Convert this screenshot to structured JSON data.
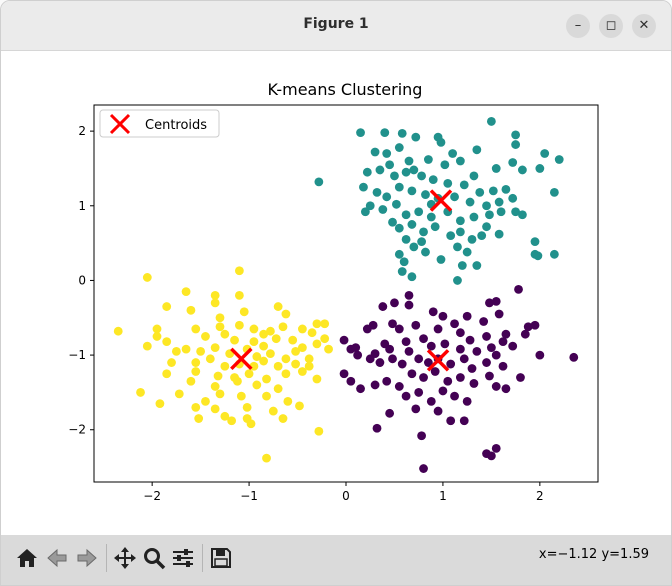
{
  "window": {
    "title": "Figure 1",
    "controls": {
      "minimize": "–",
      "maximize": "◻",
      "close": "✕"
    }
  },
  "toolbar": {
    "buttons": [
      "home-icon",
      "back-icon",
      "forward-icon",
      "pan-icon",
      "zoom-icon",
      "configure-icon",
      "save-icon"
    ],
    "coords": "x=−1.12 y=1.59"
  },
  "colors": {
    "cluster_0": "#440154",
    "cluster_1": "#21918c",
    "cluster_2": "#fde725",
    "centroid": "#ff0000"
  },
  "chart_data": {
    "type": "scatter",
    "title": "K-means Clustering",
    "xlabel": "",
    "ylabel": "",
    "xlim": [
      -2.6,
      2.6
    ],
    "ylim": [
      -2.7,
      2.35
    ],
    "xticks": [
      -2,
      -1,
      0,
      1,
      2
    ],
    "yticks": [
      -2,
      -1,
      0,
      1,
      2
    ],
    "grid": false,
    "legend": {
      "placement": "top-left",
      "entries": [
        "Centroids"
      ]
    },
    "series": [
      {
        "cluster": 0,
        "color": "#440154",
        "points": [
          [
            0.38,
            -0.35
          ],
          [
            0.48,
            -0.58
          ],
          [
            0.65,
            -0.33
          ],
          [
            0.65,
            -0.2
          ],
          [
            0.9,
            -0.42
          ],
          [
            1.0,
            -0.48
          ],
          [
            1.12,
            -0.58
          ],
          [
            1.25,
            -0.48
          ],
          [
            1.42,
            -0.55
          ],
          [
            1.48,
            -0.3
          ],
          [
            1.55,
            -0.28
          ],
          [
            1.58,
            -0.45
          ],
          [
            1.78,
            -0.12
          ],
          [
            1.88,
            -0.62
          ],
          [
            1.65,
            -0.72
          ],
          [
            1.45,
            -0.75
          ],
          [
            1.18,
            -0.7
          ],
          [
            0.95,
            -0.65
          ],
          [
            0.72,
            -0.6
          ],
          [
            0.55,
            -0.65
          ],
          [
            0.28,
            -0.6
          ],
          [
            0.22,
            -0.65
          ],
          [
            0.4,
            -0.85
          ],
          [
            0.3,
            -0.98
          ],
          [
            0.45,
            -0.92
          ],
          [
            0.62,
            -0.82
          ],
          [
            0.8,
            -0.78
          ],
          [
            0.88,
            -0.88
          ],
          [
            1.02,
            -0.85
          ],
          [
            1.18,
            -0.92
          ],
          [
            1.28,
            -0.8
          ],
          [
            1.35,
            -0.95
          ],
          [
            1.5,
            -0.9
          ],
          [
            1.62,
            -0.82
          ],
          [
            1.72,
            -0.88
          ],
          [
            1.85,
            -0.72
          ],
          [
            1.95,
            -0.6
          ],
          [
            -0.02,
            -0.8
          ],
          [
            0.05,
            -0.92
          ],
          [
            0.12,
            -1.0
          ],
          [
            0.25,
            -1.05
          ],
          [
            0.35,
            -1.1
          ],
          [
            0.48,
            -1.05
          ],
          [
            0.58,
            -1.12
          ],
          [
            0.65,
            -0.95
          ],
          [
            0.75,
            -1.05
          ],
          [
            0.85,
            -1.1
          ],
          [
            0.95,
            -1.05
          ],
          [
            1.08,
            -1.12
          ],
          [
            1.22,
            -1.05
          ],
          [
            1.3,
            -1.18
          ],
          [
            1.45,
            -1.1
          ],
          [
            1.55,
            -1.0
          ],
          [
            1.62,
            -1.15
          ],
          [
            1.48,
            -1.28
          ],
          [
            1.32,
            -1.38
          ],
          [
            1.18,
            -1.3
          ],
          [
            1.05,
            -1.35
          ],
          [
            0.92,
            -1.22
          ],
          [
            0.8,
            -1.3
          ],
          [
            0.68,
            -1.25
          ],
          [
            0.55,
            -1.42
          ],
          [
            0.42,
            -1.35
          ],
          [
            0.3,
            -1.4
          ],
          [
            0.15,
            -1.45
          ],
          [
            0.05,
            -1.35
          ],
          [
            -0.02,
            -1.25
          ],
          [
            0.62,
            -1.55
          ],
          [
            0.75,
            -1.5
          ],
          [
            0.88,
            -1.62
          ],
          [
            1.0,
            -1.48
          ],
          [
            1.12,
            -1.55
          ],
          [
            1.25,
            -1.62
          ],
          [
            1.55,
            -1.42
          ],
          [
            1.65,
            -1.45
          ],
          [
            0.72,
            -1.72
          ],
          [
            0.95,
            -1.75
          ],
          [
            1.08,
            -1.88
          ],
          [
            1.22,
            -1.88
          ],
          [
            0.45,
            -1.78
          ],
          [
            0.32,
            -1.98
          ],
          [
            0.78,
            -2.08
          ],
          [
            1.45,
            -2.32
          ],
          [
            1.5,
            -2.35
          ],
          [
            1.55,
            -2.25
          ],
          [
            0.8,
            -2.52
          ],
          [
            2.0,
            -1.0
          ],
          [
            2.35,
            -1.03
          ],
          [
            1.8,
            -1.3
          ],
          [
            0.1,
            -0.9
          ],
          [
            0.5,
            -0.3
          ]
        ]
      },
      {
        "cluster": 1,
        "color": "#21918c",
        "points": [
          [
            0.15,
            1.98
          ],
          [
            0.4,
            1.98
          ],
          [
            0.58,
            1.97
          ],
          [
            0.72,
            1.92
          ],
          [
            0.95,
            1.92
          ],
          [
            0.98,
            1.85
          ],
          [
            1.5,
            2.13
          ],
          [
            1.75,
            1.95
          ],
          [
            1.35,
            1.75
          ],
          [
            1.1,
            1.7
          ],
          [
            0.85,
            1.62
          ],
          [
            0.65,
            1.6
          ],
          [
            0.55,
            1.78
          ],
          [
            0.42,
            1.7
          ],
          [
            0.3,
            1.72
          ],
          [
            1.02,
            1.55
          ],
          [
            1.18,
            1.6
          ],
          [
            1.32,
            1.4
          ],
          [
            1.55,
            1.5
          ],
          [
            1.72,
            1.58
          ],
          [
            1.75,
            1.82
          ],
          [
            2.05,
            1.7
          ],
          [
            2.2,
            1.62
          ],
          [
            2.0,
            1.5
          ],
          [
            1.82,
            1.48
          ],
          [
            0.35,
            1.48
          ],
          [
            0.22,
            1.45
          ],
          [
            0.45,
            1.55
          ],
          [
            0.62,
            1.45
          ],
          [
            0.78,
            1.4
          ],
          [
            0.9,
            1.35
          ],
          [
            1.05,
            1.3
          ],
          [
            1.22,
            1.28
          ],
          [
            1.38,
            1.18
          ],
          [
            1.52,
            1.2
          ],
          [
            1.65,
            1.22
          ],
          [
            0.18,
            1.25
          ],
          [
            0.32,
            1.18
          ],
          [
            0.42,
            1.12
          ],
          [
            0.55,
            1.25
          ],
          [
            0.68,
            1.2
          ],
          [
            0.82,
            1.15
          ],
          [
            0.95,
            1.1
          ],
          [
            1.12,
            1.12
          ],
          [
            1.28,
            1.05
          ],
          [
            1.45,
            1.0
          ],
          [
            1.58,
            1.05
          ],
          [
            1.72,
            1.1
          ],
          [
            1.6,
            0.92
          ],
          [
            1.75,
            0.92
          ],
          [
            0.25,
            1.0
          ],
          [
            0.38,
            0.95
          ],
          [
            0.52,
            1.02
          ],
          [
            0.62,
            0.88
          ],
          [
            0.75,
            0.92
          ],
          [
            0.88,
            0.85
          ],
          [
            1.05,
            0.92
          ],
          [
            1.18,
            0.8
          ],
          [
            1.32,
            0.85
          ],
          [
            1.48,
            0.88
          ],
          [
            0.48,
            0.78
          ],
          [
            0.55,
            0.7
          ],
          [
            0.68,
            0.75
          ],
          [
            0.8,
            0.65
          ],
          [
            0.92,
            0.72
          ],
          [
            1.08,
            0.6
          ],
          [
            1.18,
            0.65
          ],
          [
            1.3,
            0.55
          ],
          [
            1.58,
            0.62
          ],
          [
            1.45,
            0.72
          ],
          [
            0.62,
            0.55
          ],
          [
            0.7,
            0.45
          ],
          [
            0.82,
            0.38
          ],
          [
            1.15,
            0.45
          ],
          [
            1.25,
            0.38
          ],
          [
            0.6,
            0.25
          ],
          [
            0.58,
            0.12
          ],
          [
            1.2,
            0.2
          ],
          [
            1.15,
            0.0
          ],
          [
            1.35,
            0.2
          ],
          [
            -0.28,
            1.32
          ],
          [
            0.5,
            1.4
          ],
          [
            0.78,
            0.52
          ],
          [
            0.68,
            0.05
          ],
          [
            0.2,
            0.92
          ],
          [
            1.95,
            0.52
          ],
          [
            2.15,
            0.35
          ],
          [
            2.15,
            1.18
          ],
          [
            1.95,
            0.35
          ],
          [
            0.88,
            1.02
          ],
          [
            1.4,
            0.6
          ],
          [
            0.55,
            0.35
          ],
          [
            0.98,
            0.28
          ],
          [
            1.98,
            0.33
          ],
          [
            0.7,
            1.48
          ],
          [
            1.82,
            0.88
          ]
        ]
      },
      {
        "cluster": 2,
        "color": "#fde725",
        "points": [
          [
            -2.05,
            0.04
          ],
          [
            -1.1,
            0.13
          ],
          [
            -1.65,
            -0.15
          ],
          [
            -1.35,
            -0.2
          ],
          [
            -1.1,
            -0.2
          ],
          [
            -1.35,
            -0.3
          ],
          [
            -1.6,
            -0.4
          ],
          [
            -1.85,
            -0.35
          ],
          [
            -1.3,
            -0.5
          ],
          [
            -1.05,
            -0.42
          ],
          [
            -0.7,
            -0.35
          ],
          [
            -0.62,
            -0.45
          ],
          [
            -0.3,
            -0.58
          ],
          [
            -0.22,
            -0.58
          ],
          [
            -2.35,
            -0.68
          ],
          [
            -1.95,
            -0.65
          ],
          [
            -1.55,
            -0.65
          ],
          [
            -1.3,
            -0.62
          ],
          [
            -1.1,
            -0.6
          ],
          [
            -0.95,
            -0.65
          ],
          [
            -0.85,
            -0.72
          ],
          [
            -0.78,
            -0.68
          ],
          [
            -0.65,
            -0.62
          ],
          [
            -0.45,
            -0.65
          ],
          [
            -0.35,
            -0.7
          ],
          [
            -0.22,
            -0.78
          ],
          [
            -1.95,
            -0.75
          ],
          [
            -1.85,
            -0.82
          ],
          [
            -1.75,
            -0.95
          ],
          [
            -1.45,
            -0.75
          ],
          [
            -1.25,
            -0.72
          ],
          [
            -1.15,
            -0.8
          ],
          [
            -0.95,
            -0.82
          ],
          [
            -0.85,
            -0.88
          ],
          [
            -0.72,
            -0.78
          ],
          [
            -0.55,
            -0.8
          ],
          [
            -0.45,
            -0.9
          ],
          [
            -0.3,
            -0.85
          ],
          [
            -2.05,
            -0.88
          ],
          [
            -1.65,
            -0.92
          ],
          [
            -1.5,
            -0.95
          ],
          [
            -1.35,
            -0.9
          ],
          [
            -1.2,
            -0.98
          ],
          [
            -1.02,
            -0.92
          ],
          [
            -0.92,
            -1.02
          ],
          [
            -0.78,
            -0.98
          ],
          [
            -0.62,
            -1.05
          ],
          [
            -0.52,
            -0.95
          ],
          [
            -0.38,
            -1.05
          ],
          [
            -1.8,
            -1.1
          ],
          [
            -1.55,
            -1.1
          ],
          [
            -1.4,
            -1.05
          ],
          [
            -1.25,
            -1.15
          ],
          [
            -1.1,
            -1.12
          ],
          [
            -0.95,
            -1.15
          ],
          [
            -0.85,
            -1.08
          ],
          [
            -0.7,
            -1.15
          ],
          [
            -0.52,
            -1.12
          ],
          [
            -0.38,
            -1.15
          ],
          [
            -1.85,
            -1.25
          ],
          [
            -1.55,
            -1.22
          ],
          [
            -1.32,
            -1.28
          ],
          [
            -1.15,
            -1.3
          ],
          [
            -1.0,
            -1.25
          ],
          [
            -0.82,
            -1.32
          ],
          [
            -0.62,
            -1.25
          ],
          [
            -0.45,
            -1.22
          ],
          [
            -1.6,
            -1.35
          ],
          [
            -1.35,
            -1.42
          ],
          [
            -1.12,
            -1.35
          ],
          [
            -0.92,
            -1.4
          ],
          [
            -0.7,
            -1.45
          ],
          [
            -0.3,
            -1.32
          ],
          [
            -2.12,
            -1.5
          ],
          [
            -1.72,
            -1.52
          ],
          [
            -1.45,
            -1.62
          ],
          [
            -1.3,
            -1.52
          ],
          [
            -1.08,
            -1.55
          ],
          [
            -0.82,
            -1.55
          ],
          [
            -0.6,
            -1.62
          ],
          [
            -1.92,
            -1.65
          ],
          [
            -1.55,
            -1.7
          ],
          [
            -1.35,
            -1.72
          ],
          [
            -1.02,
            -1.7
          ],
          [
            -0.75,
            -1.75
          ],
          [
            -1.52,
            -1.85
          ],
          [
            -1.25,
            -1.82
          ],
          [
            -1.18,
            -1.88
          ],
          [
            -1.02,
            -1.85
          ],
          [
            -0.98,
            -1.92
          ],
          [
            -0.65,
            -1.85
          ],
          [
            -0.28,
            -2.02
          ],
          [
            -0.82,
            -2.38
          ],
          [
            -0.18,
            -0.92
          ],
          [
            -0.48,
            -1.68
          ]
        ]
      }
    ],
    "centroids": [
      [
        -1.08,
        -1.05
      ],
      [
        0.98,
        1.07
      ],
      [
        0.95,
        -1.07
      ]
    ]
  }
}
